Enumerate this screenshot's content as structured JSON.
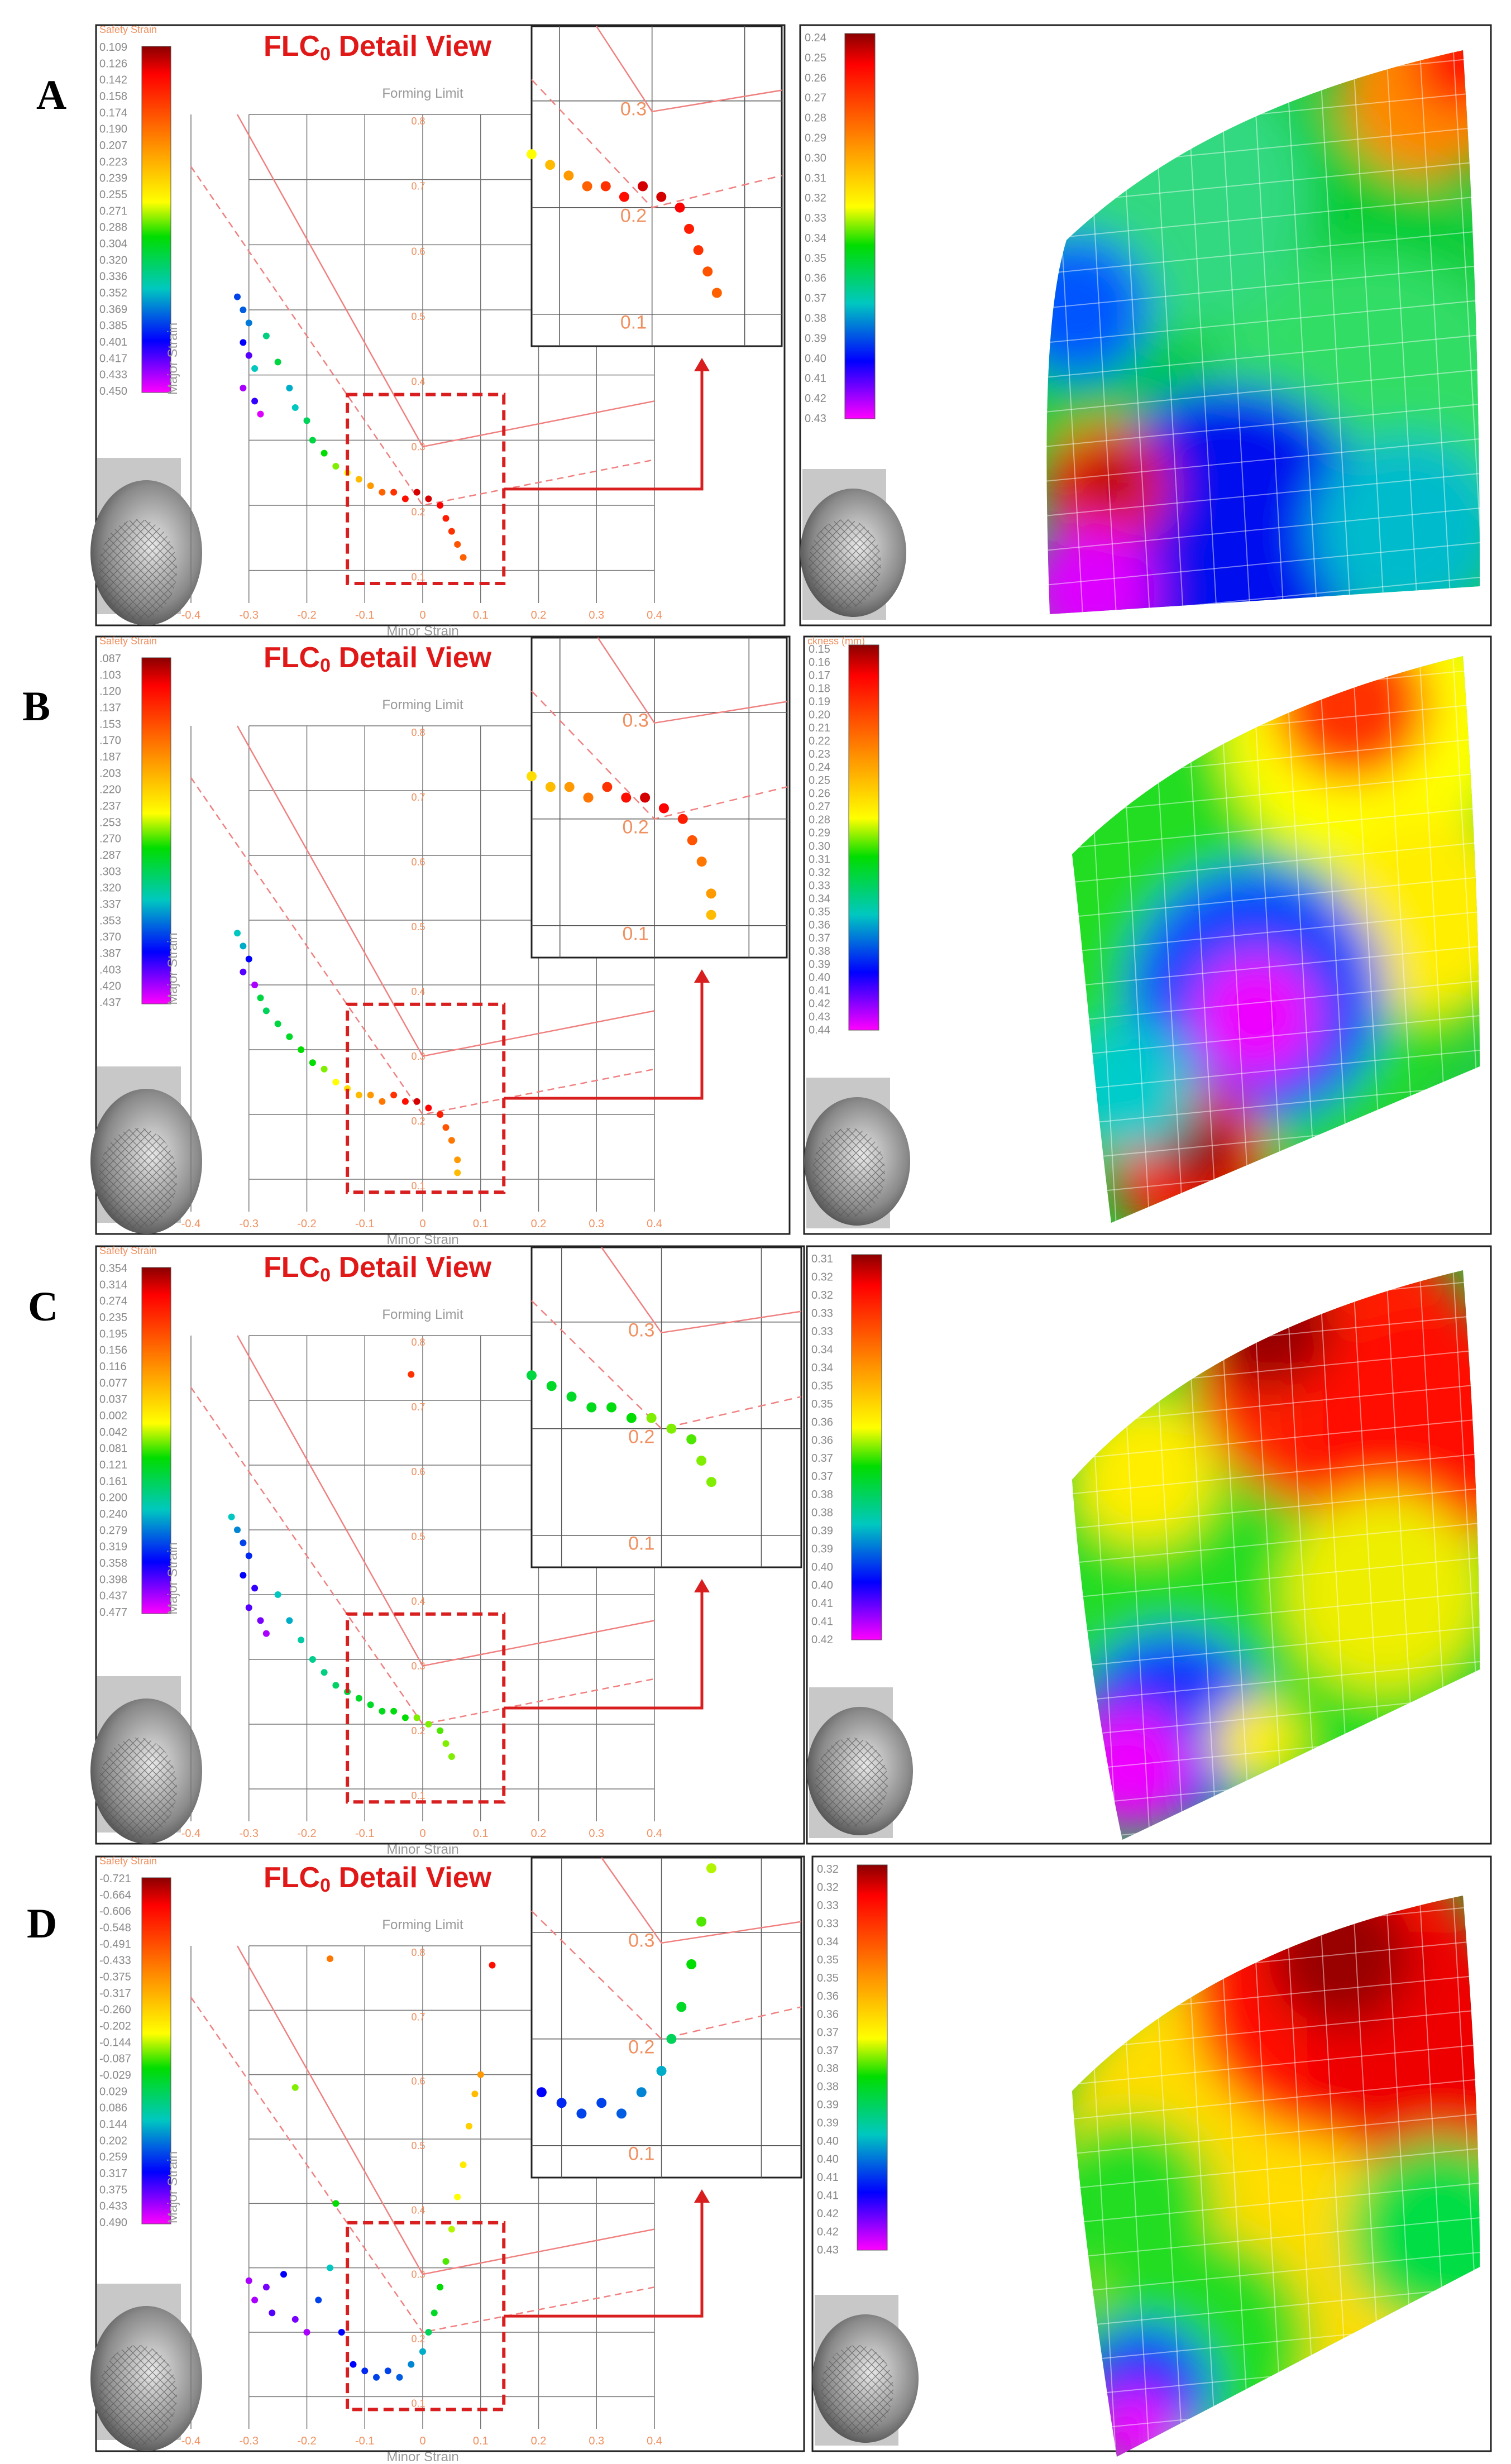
{
  "figure": {
    "title_text": "FLC0 Detail View",
    "title_main": "FLC",
    "title_sub": "0",
    "title_rest": " Detail View",
    "forming_limit_label": "Forming Limit",
    "axis_xlabel": "Minor Strain",
    "axis_ylabel": "Major Strain",
    "x_ticks": [
      "-0.4",
      "-0.3",
      "-0.2",
      "-0.1",
      "0",
      "0.1",
      "0.2",
      "0.3",
      "0.4"
    ],
    "y_ticks": [
      "0.8",
      "0.7",
      "0.6",
      "0.5",
      "0.4",
      "0.3",
      "0.2",
      "0.1"
    ],
    "inset_y_ticks": [
      "0.3",
      "0.2",
      "0.1"
    ],
    "colors": {
      "title_red": "#e01818",
      "axis_orange": "#f09060",
      "flc_line": "#f08080",
      "dashed_box": "#d81e1e",
      "panel_border": "#222222"
    }
  },
  "chart_data": [
    {
      "panel": "A",
      "type": "scatter",
      "title": "FLC0 Detail View",
      "legend_title": "Safety Strain",
      "legend_values": [
        "0.109",
        "0.126",
        "0.142",
        "0.158",
        "0.174",
        "0.190",
        "0.207",
        "0.223",
        "0.239",
        "0.255",
        "0.271",
        "0.288",
        "0.304",
        "0.320",
        "0.336",
        "0.352",
        "0.369",
        "0.385",
        "0.401",
        "0.417",
        "0.433",
        "0.450"
      ],
      "thickness_legend_title": "",
      "thickness_legend_values": [
        "0.24",
        "0.25",
        "0.26",
        "0.27",
        "0.28",
        "0.29",
        "0.30",
        "0.31",
        "0.32",
        "0.33",
        "0.34",
        "0.35",
        "0.36",
        "0.37",
        "0.38",
        "0.39",
        "0.40",
        "0.41",
        "0.42",
        "0.43"
      ],
      "xlabel": "Minor Strain",
      "ylabel": "Major Strain",
      "xlim": [
        -0.4,
        0.4
      ],
      "ylim": [
        0.05,
        0.8
      ],
      "points": [
        {
          "x": -0.32,
          "y": 0.52,
          "c": 0.8
        },
        {
          "x": -0.31,
          "y": 0.5,
          "c": 0.78
        },
        {
          "x": -0.3,
          "y": 0.48,
          "c": 0.76
        },
        {
          "x": -0.31,
          "y": 0.45,
          "c": 0.85
        },
        {
          "x": -0.3,
          "y": 0.43,
          "c": 0.9
        },
        {
          "x": -0.29,
          "y": 0.41,
          "c": 0.7
        },
        {
          "x": -0.31,
          "y": 0.38,
          "c": 0.95
        },
        {
          "x": -0.29,
          "y": 0.36,
          "c": 0.88
        },
        {
          "x": -0.28,
          "y": 0.34,
          "c": 0.98
        },
        {
          "x": -0.27,
          "y": 0.46,
          "c": 0.65
        },
        {
          "x": -0.25,
          "y": 0.42,
          "c": 0.6
        },
        {
          "x": -0.23,
          "y": 0.38,
          "c": 0.72
        },
        {
          "x": -0.22,
          "y": 0.35,
          "c": 0.7
        },
        {
          "x": -0.2,
          "y": 0.33,
          "c": 0.62
        },
        {
          "x": -0.19,
          "y": 0.3,
          "c": 0.6
        },
        {
          "x": -0.17,
          "y": 0.28,
          "c": 0.55
        },
        {
          "x": -0.15,
          "y": 0.26,
          "c": 0.5
        },
        {
          "x": -0.13,
          "y": 0.25,
          "c": 0.45
        },
        {
          "x": -0.11,
          "y": 0.24,
          "c": 0.35
        },
        {
          "x": -0.09,
          "y": 0.23,
          "c": 0.3
        },
        {
          "x": -0.07,
          "y": 0.22,
          "c": 0.22
        },
        {
          "x": -0.05,
          "y": 0.22,
          "c": 0.15
        },
        {
          "x": -0.03,
          "y": 0.21,
          "c": 0.1
        },
        {
          "x": -0.01,
          "y": 0.22,
          "c": 0.05
        },
        {
          "x": 0.01,
          "y": 0.21,
          "c": 0.05
        },
        {
          "x": 0.03,
          "y": 0.2,
          "c": 0.08
        },
        {
          "x": 0.04,
          "y": 0.18,
          "c": 0.12
        },
        {
          "x": 0.05,
          "y": 0.16,
          "c": 0.15
        },
        {
          "x": 0.06,
          "y": 0.14,
          "c": 0.2
        },
        {
          "x": 0.07,
          "y": 0.12,
          "c": 0.22
        }
      ]
    },
    {
      "panel": "B",
      "type": "scatter",
      "title": "FLC0 Detail View",
      "legend_title": "Safety Strain",
      "legend_values": [
        ".087",
        ".103",
        ".120",
        ".137",
        ".153",
        ".170",
        ".187",
        ".203",
        ".220",
        ".237",
        ".253",
        ".270",
        ".287",
        ".303",
        ".320",
        ".337",
        ".353",
        ".370",
        ".387",
        ".403",
        ".420",
        ".437"
      ],
      "thickness_legend_title": "ckness (mm)",
      "thickness_legend_values": [
        "0.15",
        "0.16",
        "0.17",
        "0.18",
        "0.19",
        "0.20",
        "0.21",
        "0.22",
        "0.23",
        "0.24",
        "0.25",
        "0.26",
        "0.27",
        "0.28",
        "0.29",
        "0.30",
        "0.31",
        "0.32",
        "0.33",
        "0.34",
        "0.35",
        "0.36",
        "0.37",
        "0.38",
        "0.39",
        "0.40",
        "0.41",
        "0.42",
        "0.43",
        "0.44"
      ],
      "xlabel": "Minor Strain",
      "ylabel": "Major Strain",
      "xlim": [
        -0.4,
        0.4
      ],
      "ylim": [
        0.05,
        0.8
      ],
      "points": [
        {
          "x": -0.32,
          "y": 0.48,
          "c": 0.7
        },
        {
          "x": -0.31,
          "y": 0.46,
          "c": 0.72
        },
        {
          "x": -0.3,
          "y": 0.44,
          "c": 0.85
        },
        {
          "x": -0.31,
          "y": 0.42,
          "c": 0.9
        },
        {
          "x": -0.29,
          "y": 0.4,
          "c": 0.95
        },
        {
          "x": -0.28,
          "y": 0.38,
          "c": 0.6
        },
        {
          "x": -0.27,
          "y": 0.36,
          "c": 0.62
        },
        {
          "x": -0.25,
          "y": 0.34,
          "c": 0.6
        },
        {
          "x": -0.23,
          "y": 0.32,
          "c": 0.58
        },
        {
          "x": -0.21,
          "y": 0.3,
          "c": 0.55
        },
        {
          "x": -0.19,
          "y": 0.28,
          "c": 0.55
        },
        {
          "x": -0.17,
          "y": 0.27,
          "c": 0.5
        },
        {
          "x": -0.15,
          "y": 0.25,
          "c": 0.45
        },
        {
          "x": -0.13,
          "y": 0.24,
          "c": 0.4
        },
        {
          "x": -0.11,
          "y": 0.23,
          "c": 0.35
        },
        {
          "x": -0.09,
          "y": 0.23,
          "c": 0.3
        },
        {
          "x": -0.07,
          "y": 0.22,
          "c": 0.25
        },
        {
          "x": -0.05,
          "y": 0.23,
          "c": 0.15
        },
        {
          "x": -0.03,
          "y": 0.22,
          "c": 0.1
        },
        {
          "x": -0.01,
          "y": 0.22,
          "c": 0.05
        },
        {
          "x": 0.01,
          "y": 0.21,
          "c": 0.08
        },
        {
          "x": 0.03,
          "y": 0.2,
          "c": 0.12
        },
        {
          "x": 0.04,
          "y": 0.18,
          "c": 0.2
        },
        {
          "x": 0.05,
          "y": 0.16,
          "c": 0.25
        },
        {
          "x": 0.06,
          "y": 0.13,
          "c": 0.3
        },
        {
          "x": 0.06,
          "y": 0.11,
          "c": 0.35
        }
      ]
    },
    {
      "panel": "C",
      "type": "scatter",
      "title": "FLC0 Detail View",
      "legend_title": "Safety Strain",
      "legend_values": [
        "0.354",
        "0.314",
        "0.274",
        "0.235",
        "0.195",
        "0.156",
        "0.116",
        "0.077",
        "0.037",
        "0.002",
        "0.042",
        "0.081",
        "0.121",
        "0.161",
        "0.200",
        "0.240",
        "0.279",
        "0.319",
        "0.358",
        "0.398",
        "0.437",
        "0.477"
      ],
      "thickness_legend_title": "",
      "thickness_legend_values": [
        "0.31",
        "0.32",
        "0.32",
        "0.33",
        "0.33",
        "0.34",
        "0.34",
        "0.35",
        "0.35",
        "0.36",
        "0.36",
        "0.37",
        "0.37",
        "0.38",
        "0.38",
        "0.39",
        "0.39",
        "0.40",
        "0.40",
        "0.41",
        "0.41",
        "0.42"
      ],
      "xlabel": "Minor Strain",
      "ylabel": "Major Strain",
      "xlim": [
        -0.4,
        0.4
      ],
      "ylim": [
        0.05,
        0.8
      ],
      "points": [
        {
          "x": -0.33,
          "y": 0.52,
          "c": 0.7
        },
        {
          "x": -0.32,
          "y": 0.5,
          "c": 0.75
        },
        {
          "x": -0.31,
          "y": 0.48,
          "c": 0.8
        },
        {
          "x": -0.3,
          "y": 0.46,
          "c": 0.82
        },
        {
          "x": -0.31,
          "y": 0.43,
          "c": 0.85
        },
        {
          "x": -0.29,
          "y": 0.41,
          "c": 0.88
        },
        {
          "x": -0.3,
          "y": 0.38,
          "c": 0.9
        },
        {
          "x": -0.28,
          "y": 0.36,
          "c": 0.92
        },
        {
          "x": -0.27,
          "y": 0.34,
          "c": 0.95
        },
        {
          "x": -0.25,
          "y": 0.4,
          "c": 0.7
        },
        {
          "x": -0.23,
          "y": 0.36,
          "c": 0.72
        },
        {
          "x": -0.21,
          "y": 0.33,
          "c": 0.68
        },
        {
          "x": -0.19,
          "y": 0.3,
          "c": 0.66
        },
        {
          "x": -0.17,
          "y": 0.28,
          "c": 0.65
        },
        {
          "x": -0.15,
          "y": 0.26,
          "c": 0.63
        },
        {
          "x": -0.13,
          "y": 0.25,
          "c": 0.6
        },
        {
          "x": -0.11,
          "y": 0.24,
          "c": 0.58
        },
        {
          "x": -0.09,
          "y": 0.23,
          "c": 0.58
        },
        {
          "x": -0.07,
          "y": 0.22,
          "c": 0.57
        },
        {
          "x": -0.05,
          "y": 0.22,
          "c": 0.56
        },
        {
          "x": -0.03,
          "y": 0.21,
          "c": 0.55
        },
        {
          "x": -0.01,
          "y": 0.21,
          "c": 0.5
        },
        {
          "x": 0.01,
          "y": 0.2,
          "c": 0.5
        },
        {
          "x": 0.03,
          "y": 0.19,
          "c": 0.52
        },
        {
          "x": 0.04,
          "y": 0.17,
          "c": 0.5
        },
        {
          "x": 0.05,
          "y": 0.15,
          "c": 0.5
        },
        {
          "x": -0.02,
          "y": 0.74,
          "c": 0.15
        }
      ]
    },
    {
      "panel": "D",
      "type": "scatter",
      "title": "FLC0 Detail View",
      "legend_title": "Safety Strain",
      "legend_values": [
        "-0.721",
        "-0.664",
        "-0.606",
        "-0.548",
        "-0.491",
        "-0.433",
        "-0.375",
        "-0.317",
        "-0.260",
        "-0.202",
        "-0.144",
        "-0.087",
        "-0.029",
        "0.029",
        "0.086",
        "0.144",
        "0.202",
        "0.259",
        "0.317",
        "0.375",
        "0.433",
        "0.490"
      ],
      "thickness_legend_title": "",
      "thickness_legend_values": [
        "0.32",
        "0.32",
        "0.33",
        "0.33",
        "0.34",
        "0.35",
        "0.35",
        "0.36",
        "0.36",
        "0.37",
        "0.37",
        "0.38",
        "0.38",
        "0.39",
        "0.39",
        "0.40",
        "0.40",
        "0.41",
        "0.41",
        "0.42",
        "0.42",
        "0.43"
      ],
      "xlabel": "Minor Strain",
      "ylabel": "Major Strain",
      "xlim": [
        -0.4,
        0.4
      ],
      "ylim": [
        0.05,
        0.8
      ],
      "points": [
        {
          "x": -0.3,
          "y": 0.28,
          "c": 0.95
        },
        {
          "x": -0.29,
          "y": 0.25,
          "c": 0.95
        },
        {
          "x": -0.27,
          "y": 0.27,
          "c": 0.92
        },
        {
          "x": -0.26,
          "y": 0.23,
          "c": 0.9
        },
        {
          "x": -0.24,
          "y": 0.29,
          "c": 0.85
        },
        {
          "x": -0.22,
          "y": 0.22,
          "c": 0.92
        },
        {
          "x": -0.2,
          "y": 0.2,
          "c": 0.95
        },
        {
          "x": -0.18,
          "y": 0.25,
          "c": 0.8
        },
        {
          "x": -0.16,
          "y": 0.3,
          "c": 0.7
        },
        {
          "x": -0.14,
          "y": 0.2,
          "c": 0.85
        },
        {
          "x": -0.12,
          "y": 0.15,
          "c": 0.85
        },
        {
          "x": -0.1,
          "y": 0.14,
          "c": 0.82
        },
        {
          "x": -0.08,
          "y": 0.13,
          "c": 0.8
        },
        {
          "x": -0.06,
          "y": 0.14,
          "c": 0.8
        },
        {
          "x": -0.04,
          "y": 0.13,
          "c": 0.78
        },
        {
          "x": -0.02,
          "y": 0.15,
          "c": 0.75
        },
        {
          "x": 0.0,
          "y": 0.17,
          "c": 0.72
        },
        {
          "x": 0.01,
          "y": 0.2,
          "c": 0.62
        },
        {
          "x": 0.02,
          "y": 0.23,
          "c": 0.58
        },
        {
          "x": 0.03,
          "y": 0.27,
          "c": 0.55
        },
        {
          "x": 0.04,
          "y": 0.31,
          "c": 0.52
        },
        {
          "x": 0.05,
          "y": 0.36,
          "c": 0.48
        },
        {
          "x": 0.06,
          "y": 0.41,
          "c": 0.45
        },
        {
          "x": 0.07,
          "y": 0.46,
          "c": 0.42
        },
        {
          "x": 0.08,
          "y": 0.52,
          "c": 0.38
        },
        {
          "x": 0.09,
          "y": 0.57,
          "c": 0.35
        },
        {
          "x": 0.1,
          "y": 0.6,
          "c": 0.3
        },
        {
          "x": -0.15,
          "y": 0.4,
          "c": 0.55
        },
        {
          "x": -0.22,
          "y": 0.58,
          "c": 0.5
        },
        {
          "x": 0.12,
          "y": 0.77,
          "c": 0.1
        },
        {
          "x": -0.16,
          "y": 0.78,
          "c": 0.25
        }
      ]
    }
  ]
}
